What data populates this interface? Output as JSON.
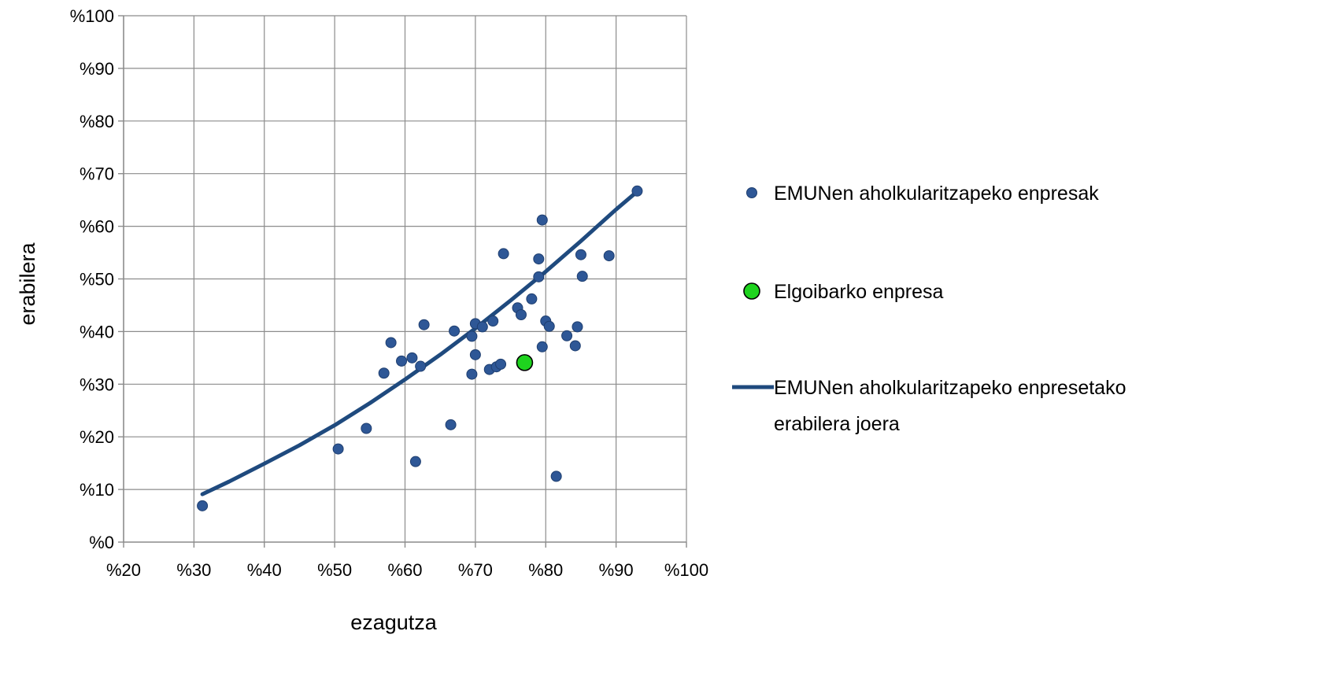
{
  "chart_data": {
    "type": "scatter",
    "title": "",
    "xlabel": "ezagutza",
    "ylabel": "erabilera",
    "xlim": [
      20,
      100
    ],
    "ylim": [
      0,
      100
    ],
    "x_ticks": [
      20,
      30,
      40,
      50,
      60,
      70,
      80,
      90,
      100
    ],
    "y_ticks": [
      0,
      10,
      20,
      30,
      40,
      50,
      60,
      70,
      80,
      90,
      100
    ],
    "x_tick_labels": [
      "%20",
      "%30",
      "%40",
      "%50",
      "%60",
      "%70",
      "%80",
      "%90",
      "%100"
    ],
    "y_tick_labels": [
      "%0",
      "%10",
      "%20",
      "%30",
      "%40",
      "%50",
      "%60",
      "%70",
      "%80",
      "%90",
      "%100"
    ],
    "grid": true,
    "legend_position": "right",
    "series": [
      {
        "name": "EMUNen aholkularitzapeko enpresak",
        "kind": "scatter",
        "color": "#2e5796",
        "points": [
          [
            31.2,
            6.9
          ],
          [
            50.5,
            17.7
          ],
          [
            54.5,
            21.6
          ],
          [
            57,
            32.1
          ],
          [
            58,
            37.9
          ],
          [
            59.5,
            34.4
          ],
          [
            61,
            35
          ],
          [
            61.5,
            15.3
          ],
          [
            62.2,
            33.4
          ],
          [
            62.7,
            41.3
          ],
          [
            66.5,
            22.3
          ],
          [
            67,
            40.1
          ],
          [
            69.5,
            39.1
          ],
          [
            69.5,
            31.9
          ],
          [
            70,
            35.6
          ],
          [
            70,
            41.5
          ],
          [
            71,
            40.9
          ],
          [
            72,
            32.8
          ],
          [
            72.5,
            42
          ],
          [
            73,
            33.3
          ],
          [
            73.6,
            33.8
          ],
          [
            74,
            54.8
          ],
          [
            76,
            44.5
          ],
          [
            76.5,
            43.2
          ],
          [
            78,
            46.2
          ],
          [
            79,
            53.8
          ],
          [
            79,
            50.4
          ],
          [
            79.5,
            61.2
          ],
          [
            79.5,
            37.1
          ],
          [
            80,
            42
          ],
          [
            80.5,
            41
          ],
          [
            81.5,
            12.5
          ],
          [
            83,
            39.2
          ],
          [
            84.2,
            37.3
          ],
          [
            84.5,
            40.9
          ],
          [
            85,
            54.6
          ],
          [
            85.2,
            50.5
          ],
          [
            89,
            54.4
          ],
          [
            93,
            66.7
          ]
        ]
      },
      {
        "name": "Elgoibarko enpresa",
        "kind": "scatter",
        "color": "#1ed31e",
        "points": [
          [
            77,
            34.1
          ]
        ]
      },
      {
        "name": "EMUNen aholkularitzapeko enpresetako erabilera joera",
        "kind": "line",
        "color": "#1f4a7e",
        "points": [
          [
            31.2,
            9.1
          ],
          [
            35,
            11.5
          ],
          [
            40,
            14.9
          ],
          [
            45,
            18.4
          ],
          [
            50,
            22.2
          ],
          [
            55,
            26.4
          ],
          [
            60,
            30.9
          ],
          [
            65,
            35.6
          ],
          [
            70,
            40.6
          ],
          [
            75,
            45.9
          ],
          [
            80,
            51.4
          ],
          [
            85,
            57.2
          ],
          [
            90,
            63.2
          ],
          [
            93,
            66.6
          ]
        ]
      }
    ]
  }
}
